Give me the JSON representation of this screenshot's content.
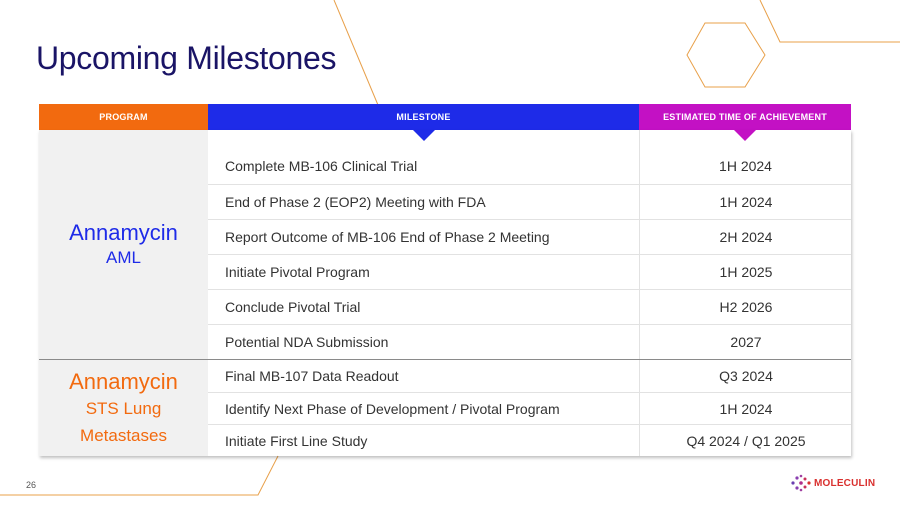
{
  "title": "Upcoming Milestones",
  "headers": {
    "program": "PROGRAM",
    "milestone": "MILESTONE",
    "estimate": "ESTIMATED TIME OF ACHIEVEMENT"
  },
  "programs": [
    {
      "name": "Annamycin",
      "lines": [
        "AML"
      ]
    },
    {
      "name": "Annamycin",
      "lines": [
        "STS Lung",
        "Metastases"
      ]
    }
  ],
  "rows": [
    {
      "milestone": "Complete MB-106 Clinical Trial",
      "estimate": "1H 2024"
    },
    {
      "milestone": "End of Phase 2 (EOP2) Meeting with FDA",
      "estimate": "1H 2024"
    },
    {
      "milestone": "Report Outcome of MB-106 End of Phase 2 Meeting",
      "estimate": "2H 2024"
    },
    {
      "milestone": "Initiate Pivotal Program",
      "estimate": "1H 2025"
    },
    {
      "milestone": "Conclude Pivotal Trial",
      "estimate": "H2 2026"
    },
    {
      "milestone": "Potential NDA Submission",
      "estimate": "2027"
    },
    {
      "milestone": "Final MB-107 Data Readout",
      "estimate": "Q3 2024"
    },
    {
      "milestone": "Identify Next Phase of Development / Pivotal Program",
      "estimate": "1H 2024"
    },
    {
      "milestone": "Initiate First Line Study",
      "estimate": "Q4 2024 / Q1 2025"
    }
  ],
  "page_number": "26",
  "logo": {
    "text": "MOLECULIN",
    "color": "#d9302e",
    "icon": "molecule-dots-icon"
  },
  "colors": {
    "title": "#1a1466",
    "program_header": "#f26a0f",
    "milestone_header": "#1e2be8",
    "estimate_header": "#c311c4",
    "decor_lines": "#e8a04a"
  }
}
